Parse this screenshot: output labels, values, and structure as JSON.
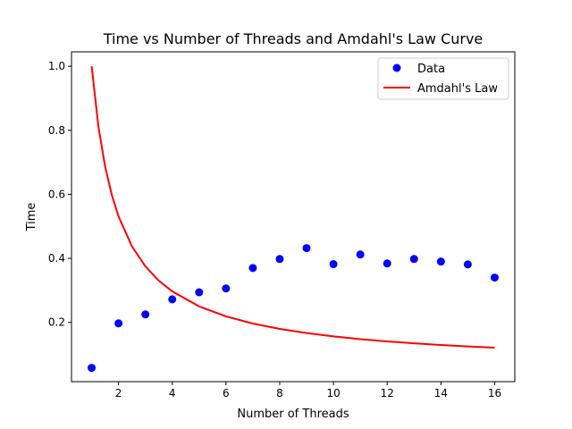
{
  "chart_data": {
    "type": "scatter",
    "title": "Time vs Number of Threads and Amdahl's Law Curve",
    "xlabel": "Number of Threads",
    "ylabel": "Time",
    "xlim": [
      0.25,
      16.75
    ],
    "ylim": [
      0.015,
      1.045
    ],
    "xticks": [
      2,
      4,
      6,
      8,
      10,
      12,
      14,
      16
    ],
    "yticks": [
      0.2,
      0.4,
      0.6,
      0.8,
      1.0
    ],
    "ytick_labels": [
      "0.2",
      "0.4",
      "0.6",
      "0.8",
      "1.0"
    ],
    "grid": false,
    "legend_position": "top-right",
    "series": [
      {
        "name": "Data",
        "kind": "scatter",
        "color": "#0000ff",
        "x": [
          1,
          2,
          3,
          4,
          5,
          6,
          7,
          8,
          9,
          10,
          11,
          12,
          13,
          14,
          15,
          16
        ],
        "y": [
          0.058,
          0.197,
          0.225,
          0.272,
          0.294,
          0.306,
          0.37,
          0.398,
          0.432,
          0.382,
          0.412,
          0.384,
          0.398,
          0.39,
          0.381,
          0.34
        ]
      },
      {
        "name": "Amdahl's Law",
        "kind": "line",
        "color": "#ff0000",
        "x": [
          1,
          1.25,
          1.5,
          1.75,
          2,
          2.5,
          3,
          3.5,
          4,
          5,
          6,
          7,
          8,
          9,
          10,
          11,
          12,
          13,
          14,
          15,
          16
        ],
        "y": [
          1.0,
          0.8125,
          0.6875,
          0.5982,
          0.5313,
          0.4375,
          0.375,
          0.3304,
          0.2969,
          0.25,
          0.2188,
          0.1964,
          0.1797,
          0.1667,
          0.1563,
          0.1477,
          0.1406,
          0.1346,
          0.1295,
          0.125,
          0.1211
        ]
      }
    ]
  }
}
